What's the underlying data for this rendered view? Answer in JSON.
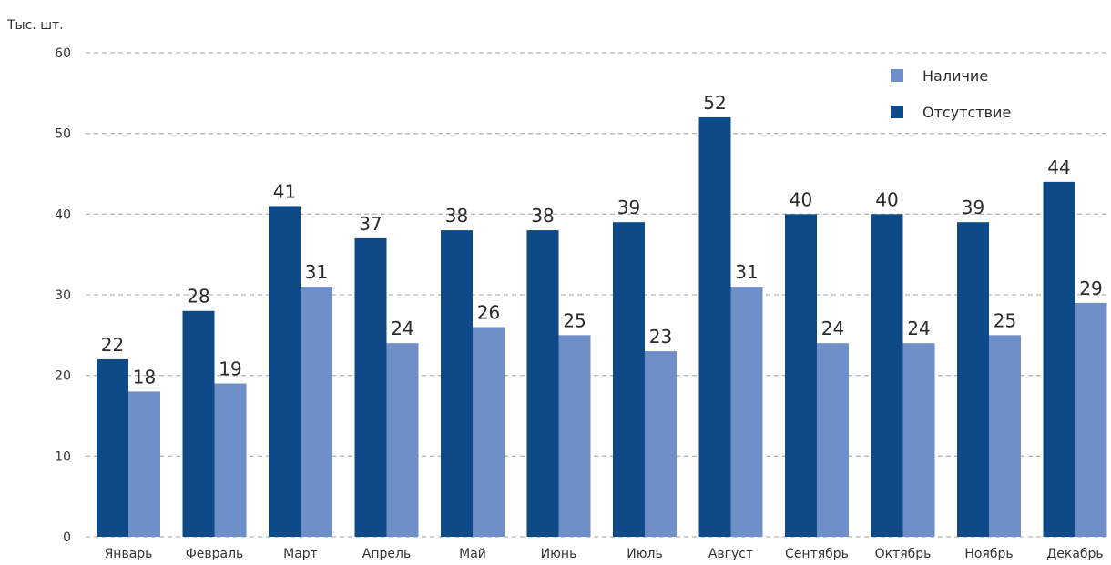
{
  "chart_data": {
    "type": "bar",
    "unit_label": "Тыс. шт.",
    "categories": [
      "Январь",
      "Февраль",
      "Март",
      "Апрель",
      "Май",
      "Июнь",
      "Июль",
      "Август",
      "Сентябрь",
      "Октябрь",
      "Ноябрь",
      "Декабрь"
    ],
    "series": [
      {
        "name": "Отсутствие",
        "color": "#0e4a87",
        "values": [
          22,
          28,
          41,
          37,
          38,
          38,
          39,
          52,
          40,
          40,
          39,
          44
        ]
      },
      {
        "name": "Наличие",
        "color": "#6f8fc8",
        "values": [
          18,
          19,
          31,
          24,
          26,
          25,
          23,
          31,
          24,
          24,
          25,
          29
        ]
      }
    ],
    "ylim": [
      0,
      60
    ],
    "yticks": [
      0,
      10,
      20,
      30,
      40,
      50,
      60
    ],
    "grid": true,
    "legend": {
      "position": "top-right",
      "items": [
        {
          "name": "Наличие",
          "color": "#6f8fc8"
        },
        {
          "name": "Отсутствие",
          "color": "#0e4a87"
        }
      ]
    }
  }
}
